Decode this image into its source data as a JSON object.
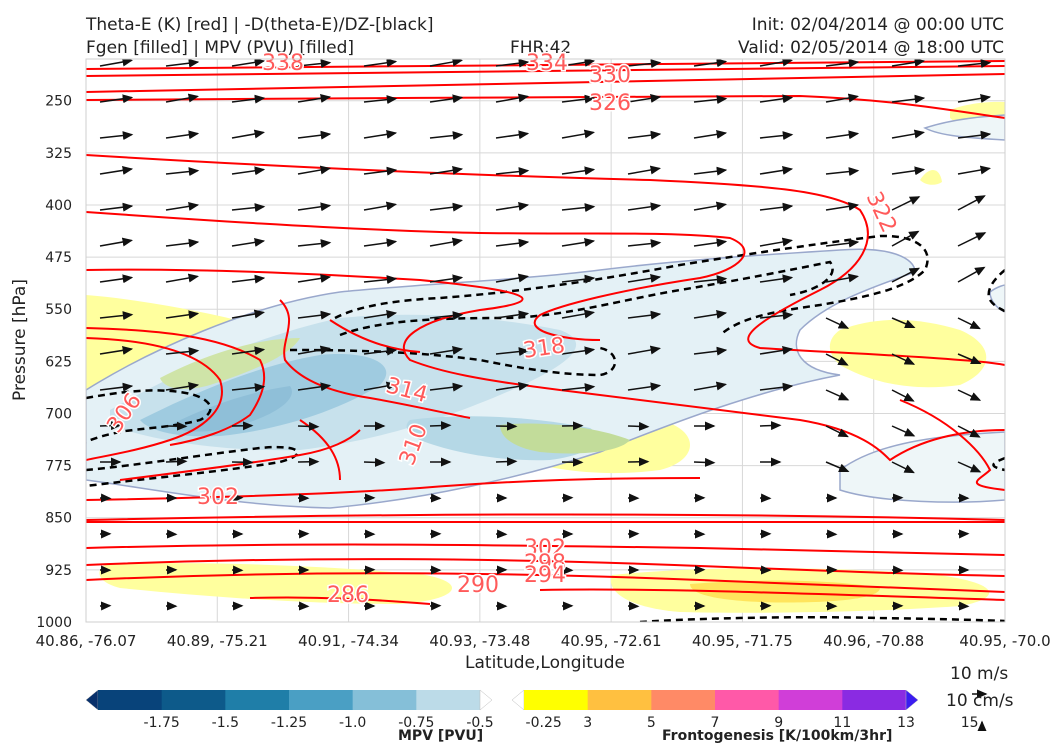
{
  "header": {
    "title_line1": "Theta-E (K) [red] | -D(theta-E)/DZ-[black]",
    "title_line2": "Fgen [filled] | MPV (PVU) [filled]",
    "fhr": "FHR:42",
    "init": "Init: 02/04/2014 @ 00:00 UTC",
    "valid": "Valid: 02/05/2014 @ 18:00 UTC"
  },
  "colors": {
    "theta_e": "#ff0000",
    "theta_e_label": "#ff5a5a",
    "ddz": "#000000",
    "mpv_outline": "#9aa8cc",
    "grid": "#d8d8d8"
  },
  "chart_data": {
    "type": "cross-section",
    "xlabel": "Latitude,Longitude",
    "ylabel": "Pressure [hPa]",
    "x_ticks": [
      "40.86, -76.07",
      "40.89, -75.21",
      "40.91, -74.34",
      "40.93, -73.48",
      "40.95, -72.61",
      "40.95, -71.75",
      "40.96, -70.88",
      "40.95, -70.0"
    ],
    "y_ticks": [
      250,
      325,
      400,
      475,
      550,
      625,
      700,
      775,
      850,
      925,
      1000
    ],
    "ylim": [
      1000,
      190
    ],
    "theta_e_labels": [
      "338",
      "334",
      "330",
      "326",
      "322",
      "318",
      "314",
      "310",
      "306",
      "302",
      "302",
      "298",
      "294",
      "290",
      "286"
    ],
    "mpv_colorbar": {
      "label": "MPV [PVU]",
      "ticks": [
        "-1.75",
        "-1.5",
        "-1.25",
        "-1.0",
        "-0.75",
        "-0.5",
        "-0.25"
      ],
      "colors": [
        "#08306b",
        "#08437a",
        "#0d5a8a",
        "#1f7ea8",
        "#4a9fc4",
        "#85bfd8",
        "#bcdbe8",
        "#ffffff"
      ]
    },
    "fgen_colorbar": {
      "label": "Frontogenesis [K/100km/3hr]",
      "ticks": [
        "3",
        "5",
        "7",
        "9",
        "11",
        "13",
        "15"
      ],
      "colors": [
        "#ffffff",
        "#ffff00",
        "#ffc040",
        "#ff8a66",
        "#ff59a8",
        "#d03ed8",
        "#8a2be2",
        "#3b1cf0"
      ]
    },
    "reference_vector": [
      "10 m/s",
      "10 cm/s"
    ]
  }
}
